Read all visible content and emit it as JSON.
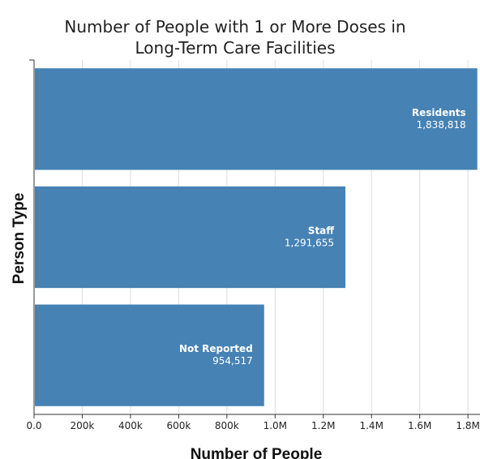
{
  "chart_data": {
    "type": "bar",
    "orientation": "horizontal",
    "title_lines": [
      "Number of People with 1 or More Doses in",
      "Long-Term Care Facilities"
    ],
    "xlabel": "Number of People",
    "ylabel": "Person Type",
    "categories": [
      "Residents",
      "Staff",
      "Not Reported"
    ],
    "values": [
      1838818,
      1291655,
      954517
    ],
    "value_labels": [
      "1,838,818",
      "1,291,655",
      "954,517"
    ],
    "xlim": [
      0,
      1850000
    ],
    "ticks": [
      0,
      200000,
      400000,
      600000,
      800000,
      1000000,
      1200000,
      1400000,
      1600000,
      1800000
    ],
    "tick_labels": [
      "0.0",
      "200k",
      "400k",
      "600k",
      "800k",
      "1.0M",
      "1.2M",
      "1.4M",
      "1.6M",
      "1.8M"
    ],
    "grid": true,
    "bar_color": "#4682b4",
    "grid_color": "#dddddd"
  }
}
